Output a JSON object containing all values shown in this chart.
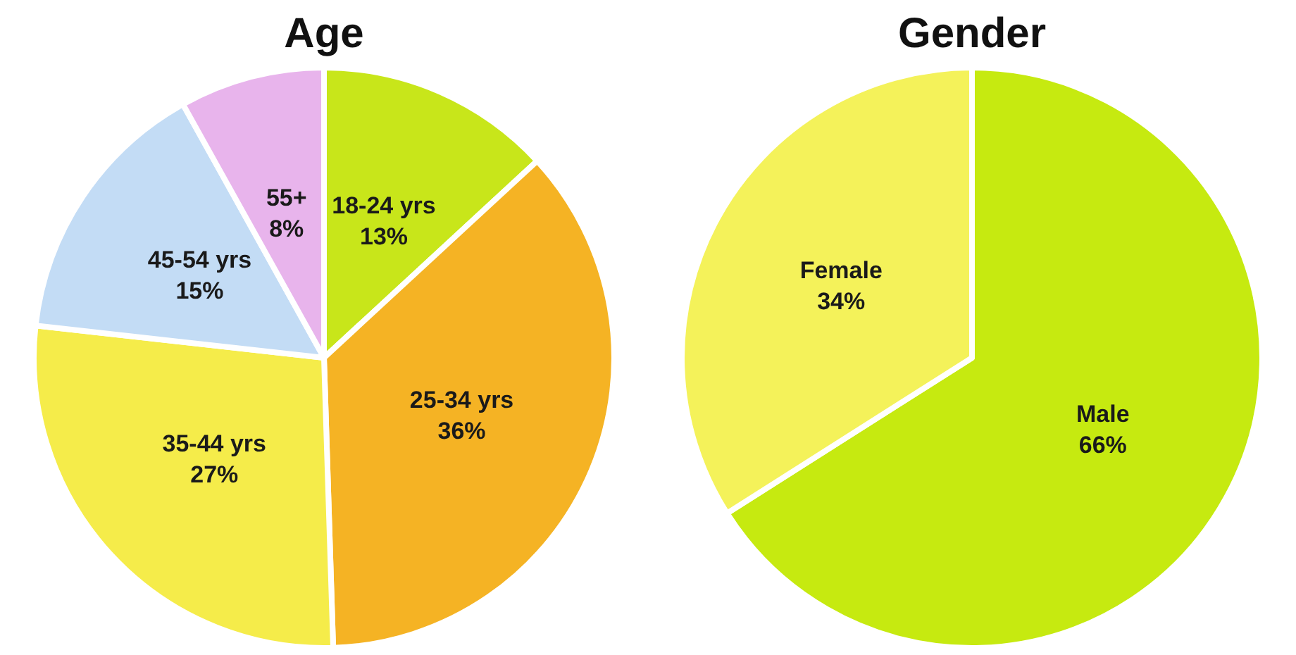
{
  "chart_data": [
    {
      "type": "pie",
      "title": "Age",
      "categories": [
        "18-24 yrs",
        "25-34 yrs",
        "35-44 yrs",
        "45-54 yrs",
        "55+"
      ],
      "values": [
        13,
        36,
        27,
        15,
        8
      ],
      "value_labels": [
        "13%",
        "36%",
        "27%",
        "15%",
        "8%"
      ],
      "colors": [
        "#c8e61a",
        "#f5b324",
        "#f5ec4a",
        "#c3dcf5",
        "#e8b4ec"
      ]
    },
    {
      "type": "pie",
      "title": "Gender",
      "categories": [
        "Male",
        "Female"
      ],
      "values": [
        66,
        34
      ],
      "value_labels": [
        "66%",
        "34%"
      ],
      "colors": [
        "#c6ea10",
        "#f4f25a"
      ]
    }
  ]
}
